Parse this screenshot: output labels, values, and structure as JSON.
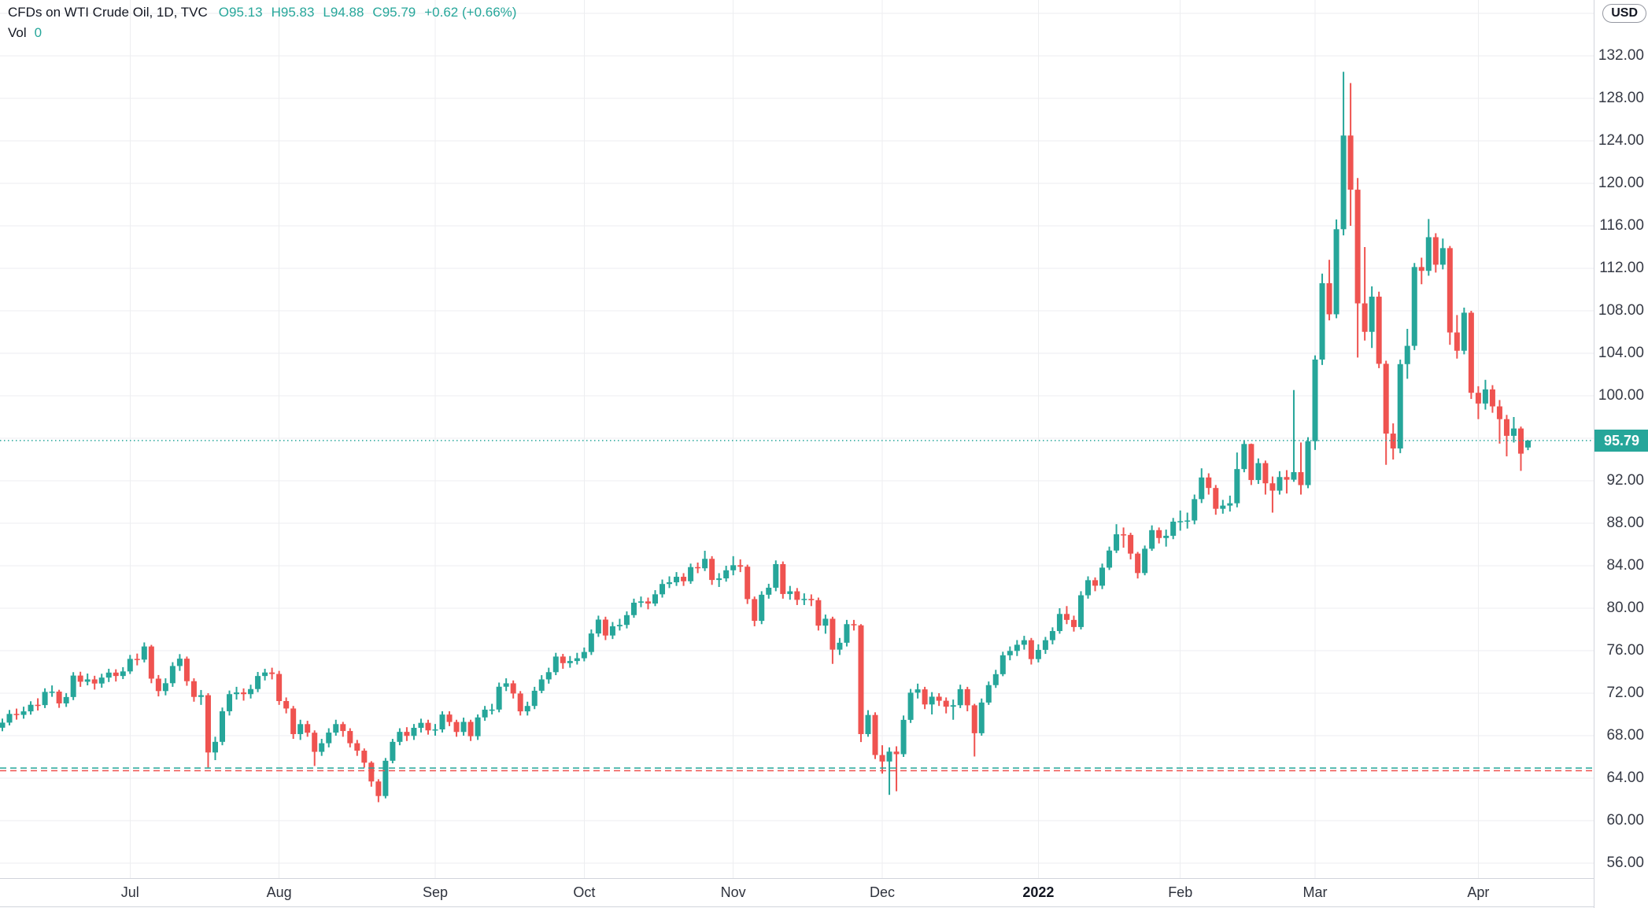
{
  "header": {
    "symbol_title": "CFDs on WTI Crude Oil, 1D, TVC",
    "ohlc": [
      {
        "label": "O",
        "value": "95.13"
      },
      {
        "label": "H",
        "value": "95.83"
      },
      {
        "label": "L",
        "value": "94.88"
      },
      {
        "label": "C",
        "value": "95.79"
      }
    ],
    "change": "+0.62 (+0.66%)",
    "volume_label": "Vol",
    "volume_value": "0"
  },
  "price_axis": {
    "currency_button": "USD",
    "last_price": "95.79",
    "tick_labels": [
      "132.00",
      "128.00",
      "124.00",
      "120.00",
      "116.00",
      "112.00",
      "108.00",
      "104.00",
      "100.00",
      "92.00",
      "88.00",
      "84.00",
      "80.00",
      "76.00",
      "72.00",
      "68.00",
      "64.00",
      "60.00",
      "56.00"
    ]
  },
  "chart_data": {
    "type": "candlestick",
    "title": "CFDs on WTI Crude Oil, 1D, TVC",
    "symbol": "CFDs on WTI Crude Oil",
    "interval": "1D",
    "exchange": "TVC",
    "currency": "USD",
    "last_bar": {
      "open": 95.13,
      "high": 95.83,
      "low": 94.88,
      "close": 95.79,
      "change_text": "+0.62 (+0.66%)"
    },
    "volume_shown": 0,
    "colors": {
      "up": "#26a69a",
      "down": "#ef5350",
      "grid": "#edeef0",
      "axis_border": "#d1d4dc",
      "axis_text": "#363a45",
      "badge_bg": "#26a69a"
    },
    "y_axis": {
      "label_min": 56,
      "label_max": 132,
      "tick_step": 4,
      "gridline_max": 136,
      "unit": "USD"
    },
    "x_axis": [
      {
        "label": "Jul",
        "candle_index": 18,
        "bold": false
      },
      {
        "label": "Aug",
        "candle_index": 39,
        "bold": false
      },
      {
        "label": "Sep",
        "candle_index": 61,
        "bold": false
      },
      {
        "label": "Oct",
        "candle_index": 82,
        "bold": false
      },
      {
        "label": "Nov",
        "candle_index": 103,
        "bold": false
      },
      {
        "label": "Dec",
        "candle_index": 124,
        "bold": false
      },
      {
        "label": "2022",
        "candle_index": 146,
        "bold": true
      },
      {
        "label": "Feb",
        "candle_index": 166,
        "bold": false
      },
      {
        "label": "Mar",
        "candle_index": 185,
        "bold": false
      },
      {
        "label": "Apr",
        "candle_index": 208,
        "bold": false
      }
    ],
    "price_lines": [
      {
        "name": "last-price-line",
        "price": 95.79,
        "color": "#26a69a",
        "style": "dotted"
      },
      {
        "name": "teal-alert-line",
        "price": 64.95,
        "color": "#26a69a",
        "style": "dashed"
      },
      {
        "name": "red-alert-line",
        "price": 64.7,
        "color": "#ef5350",
        "style": "dashed"
      }
    ],
    "candles": [
      [
        68.75,
        69.61,
        68.42,
        69.23
      ],
      [
        69.23,
        70.42,
        68.97,
        70.05
      ],
      [
        70.05,
        70.55,
        69.51,
        69.96
      ],
      [
        69.96,
        70.73,
        69.6,
        70.29
      ],
      [
        70.29,
        71.24,
        69.98,
        70.91
      ],
      [
        70.91,
        71.52,
        70.37,
        70.88
      ],
      [
        70.88,
        72.46,
        70.6,
        72.12
      ],
      [
        72.12,
        72.73,
        71.66,
        72.15
      ],
      [
        72.15,
        72.32,
        70.62,
        71.04
      ],
      [
        71.04,
        72.01,
        70.71,
        71.64
      ],
      [
        71.64,
        73.98,
        71.35,
        73.66
      ],
      [
        73.66,
        74.02,
        72.6,
        73.08
      ],
      [
        73.08,
        73.85,
        72.74,
        73.3
      ],
      [
        73.3,
        73.64,
        72.34,
        72.91
      ],
      [
        72.91,
        73.83,
        72.52,
        73.47
      ],
      [
        73.47,
        74.3,
        73.05,
        73.94
      ],
      [
        73.94,
        74.25,
        73.1,
        73.62
      ],
      [
        73.62,
        74.45,
        73.33,
        74.05
      ],
      [
        74.05,
        75.6,
        73.81,
        75.23
      ],
      [
        75.23,
        75.73,
        74.62,
        75.16
      ],
      [
        75.16,
        76.78,
        74.9,
        76.4
      ],
      [
        76.4,
        76.55,
        72.94,
        73.37
      ],
      [
        73.37,
        73.71,
        71.7,
        72.2
      ],
      [
        72.2,
        73.4,
        71.8,
        72.94
      ],
      [
        72.94,
        74.92,
        72.6,
        74.56
      ],
      [
        74.56,
        75.68,
        74.1,
        75.25
      ],
      [
        75.25,
        75.45,
        72.7,
        73.13
      ],
      [
        73.13,
        73.4,
        71.2,
        71.65
      ],
      [
        71.65,
        72.3,
        70.9,
        71.81
      ],
      [
        71.81,
        72.0,
        65.01,
        66.42
      ],
      [
        66.42,
        67.9,
        65.7,
        67.42
      ],
      [
        67.42,
        70.65,
        67.1,
        70.3
      ],
      [
        70.3,
        72.25,
        69.9,
        71.91
      ],
      [
        71.91,
        72.6,
        71.4,
        72.07
      ],
      [
        72.07,
        72.45,
        71.3,
        71.91
      ],
      [
        71.91,
        72.8,
        71.5,
        72.39
      ],
      [
        72.39,
        74.0,
        72.1,
        73.62
      ],
      [
        73.62,
        74.3,
        73.2,
        73.95
      ],
      [
        73.95,
        74.4,
        73.3,
        73.81
      ],
      [
        73.81,
        74.1,
        70.9,
        71.26
      ],
      [
        71.26,
        71.6,
        70.1,
        70.56
      ],
      [
        70.56,
        70.8,
        67.7,
        68.15
      ],
      [
        68.15,
        69.5,
        67.6,
        69.09
      ],
      [
        69.09,
        69.4,
        67.9,
        68.28
      ],
      [
        68.28,
        68.5,
        65.15,
        66.48
      ],
      [
        66.48,
        67.7,
        66.1,
        67.29
      ],
      [
        67.29,
        68.7,
        66.9,
        68.29
      ],
      [
        68.29,
        69.5,
        68.0,
        69.09
      ],
      [
        69.09,
        69.3,
        67.9,
        68.44
      ],
      [
        68.44,
        68.7,
        66.9,
        67.29
      ],
      [
        67.29,
        67.6,
        66.1,
        66.59
      ],
      [
        66.59,
        66.8,
        65.0,
        65.46
      ],
      [
        65.46,
        65.6,
        63.2,
        63.69
      ],
      [
        63.69,
        63.9,
        61.74,
        62.32
      ],
      [
        62.32,
        65.9,
        62.1,
        65.64
      ],
      [
        65.64,
        67.7,
        65.4,
        67.42
      ],
      [
        67.42,
        68.7,
        67.1,
        68.36
      ],
      [
        68.36,
        68.8,
        67.5,
        67.98
      ],
      [
        67.98,
        69.1,
        67.6,
        68.74
      ],
      [
        68.74,
        69.6,
        68.3,
        69.21
      ],
      [
        69.21,
        69.5,
        68.1,
        68.5
      ],
      [
        68.5,
        69.1,
        68.0,
        68.59
      ],
      [
        68.59,
        70.3,
        68.3,
        69.99
      ],
      [
        69.99,
        70.3,
        68.9,
        69.29
      ],
      [
        69.29,
        69.5,
        67.9,
        68.35
      ],
      [
        68.35,
        69.7,
        68.0,
        69.3
      ],
      [
        69.3,
        69.5,
        67.5,
        67.95
      ],
      [
        67.95,
        70.0,
        67.6,
        69.72
      ],
      [
        69.72,
        70.8,
        69.4,
        70.45
      ],
      [
        70.45,
        71.0,
        70.0,
        70.46
      ],
      [
        70.46,
        73.0,
        70.2,
        72.61
      ],
      [
        72.61,
        73.4,
        72.2,
        72.93
      ],
      [
        72.93,
        73.2,
        71.5,
        71.97
      ],
      [
        71.97,
        72.2,
        69.9,
        70.29
      ],
      [
        70.29,
        71.2,
        69.9,
        70.8
      ],
      [
        70.8,
        72.6,
        70.5,
        72.23
      ],
      [
        72.23,
        73.7,
        72.0,
        73.3
      ],
      [
        73.3,
        74.4,
        72.9,
        73.98
      ],
      [
        73.98,
        75.8,
        73.7,
        75.45
      ],
      [
        75.45,
        75.7,
        74.3,
        74.83
      ],
      [
        74.83,
        75.5,
        74.4,
        75.03
      ],
      [
        75.03,
        75.8,
        74.7,
        75.29
      ],
      [
        75.29,
        76.3,
        75.0,
        75.88
      ],
      [
        75.88,
        78.0,
        75.6,
        77.62
      ],
      [
        77.62,
        79.3,
        77.3,
        78.93
      ],
      [
        78.93,
        79.2,
        77.0,
        77.43
      ],
      [
        77.43,
        78.7,
        77.1,
        78.3
      ],
      [
        78.3,
        79.0,
        77.9,
        78.43
      ],
      [
        78.43,
        79.7,
        78.1,
        79.35
      ],
      [
        79.35,
        80.9,
        79.1,
        80.52
      ],
      [
        80.52,
        81.1,
        80.1,
        80.64
      ],
      [
        80.64,
        81.0,
        79.9,
        80.44
      ],
      [
        80.44,
        81.7,
        80.2,
        81.31
      ],
      [
        81.31,
        82.7,
        81.0,
        82.28
      ],
      [
        82.28,
        83.0,
        81.9,
        82.44
      ],
      [
        82.44,
        83.4,
        82.1,
        82.96
      ],
      [
        82.96,
        83.3,
        82.1,
        82.54
      ],
      [
        82.54,
        84.2,
        82.3,
        83.87
      ],
      [
        83.87,
        84.3,
        83.3,
        83.76
      ],
      [
        83.76,
        85.41,
        83.5,
        84.65
      ],
      [
        84.65,
        84.9,
        82.2,
        82.66
      ],
      [
        82.66,
        83.3,
        82.0,
        82.81
      ],
      [
        82.81,
        84.0,
        82.5,
        83.57
      ],
      [
        83.57,
        84.9,
        83.1,
        84.05
      ],
      [
        84.05,
        84.6,
        83.4,
        83.91
      ],
      [
        83.91,
        84.1,
        80.4,
        80.86
      ],
      [
        80.86,
        81.1,
        78.3,
        78.81
      ],
      [
        78.81,
        81.6,
        78.5,
        81.27
      ],
      [
        81.27,
        82.3,
        80.9,
        81.93
      ],
      [
        81.93,
        84.5,
        81.6,
        84.15
      ],
      [
        84.15,
        84.4,
        80.9,
        81.34
      ],
      [
        81.34,
        82.1,
        80.8,
        81.59
      ],
      [
        81.59,
        81.9,
        80.3,
        80.79
      ],
      [
        80.79,
        81.4,
        80.3,
        80.88
      ],
      [
        80.88,
        81.3,
        80.2,
        80.76
      ],
      [
        80.76,
        81.0,
        77.9,
        78.36
      ],
      [
        78.36,
        79.4,
        77.6,
        79.01
      ],
      [
        79.01,
        79.2,
        74.76,
        76.1
      ],
      [
        76.1,
        77.2,
        75.6,
        76.75
      ],
      [
        76.75,
        78.9,
        76.4,
        78.5
      ],
      [
        78.5,
        78.9,
        77.9,
        78.39
      ],
      [
        78.39,
        78.5,
        67.4,
        68.15
      ],
      [
        68.15,
        70.4,
        67.9,
        69.95
      ],
      [
        69.95,
        70.2,
        65.8,
        66.18
      ],
      [
        66.18,
        67.1,
        64.43,
        65.57
      ],
      [
        65.57,
        66.9,
        62.43,
        66.5
      ],
      [
        66.5,
        67.0,
        62.77,
        66.26
      ],
      [
        66.26,
        69.9,
        66.0,
        69.49
      ],
      [
        69.49,
        72.4,
        69.2,
        72.05
      ],
      [
        72.05,
        72.9,
        71.5,
        72.36
      ],
      [
        72.36,
        72.6,
        70.5,
        70.94
      ],
      [
        70.94,
        72.1,
        70.0,
        71.67
      ],
      [
        71.67,
        72.0,
        70.8,
        71.29
      ],
      [
        71.29,
        71.6,
        70.1,
        70.73
      ],
      [
        70.73,
        71.4,
        69.5,
        70.87
      ],
      [
        70.87,
        72.8,
        70.6,
        72.38
      ],
      [
        72.38,
        72.6,
        70.3,
        70.86
      ],
      [
        70.86,
        71.0,
        66.04,
        68.23
      ],
      [
        68.23,
        71.5,
        68.0,
        71.12
      ],
      [
        71.12,
        73.1,
        70.9,
        72.76
      ],
      [
        72.76,
        74.2,
        72.5,
        73.79
      ],
      [
        73.79,
        75.9,
        73.6,
        75.57
      ],
      [
        75.57,
        76.4,
        75.1,
        75.98
      ],
      [
        75.98,
        77.0,
        75.5,
        76.56
      ],
      [
        76.56,
        77.4,
        76.1,
        76.99
      ],
      [
        76.99,
        77.2,
        74.7,
        75.21
      ],
      [
        75.21,
        76.6,
        74.9,
        76.08
      ],
      [
        76.08,
        77.3,
        75.7,
        76.99
      ],
      [
        76.99,
        78.2,
        76.6,
        77.85
      ],
      [
        77.85,
        80.0,
        77.6,
        79.46
      ],
      [
        79.46,
        80.2,
        78.5,
        78.9
      ],
      [
        78.9,
        79.3,
        77.8,
        78.23
      ],
      [
        78.23,
        81.6,
        78.0,
        81.22
      ],
      [
        81.22,
        83.0,
        80.9,
        82.64
      ],
      [
        82.64,
        82.9,
        81.6,
        82.12
      ],
      [
        82.12,
        84.2,
        81.8,
        83.82
      ],
      [
        83.82,
        85.8,
        83.6,
        85.43
      ],
      [
        85.43,
        87.91,
        85.2,
        86.96
      ],
      [
        86.96,
        87.6,
        85.7,
        86.9
      ],
      [
        86.9,
        87.1,
        84.6,
        85.14
      ],
      [
        85.14,
        85.3,
        82.8,
        83.31
      ],
      [
        83.31,
        85.9,
        83.1,
        85.6
      ],
      [
        85.6,
        87.8,
        85.4,
        87.35
      ],
      [
        87.35,
        87.6,
        86.1,
        86.61
      ],
      [
        86.61,
        87.4,
        85.8,
        86.82
      ],
      [
        86.82,
        88.5,
        86.5,
        88.15
      ],
      [
        88.15,
        89.2,
        87.3,
        88.2
      ],
      [
        88.2,
        89.0,
        87.5,
        88.26
      ],
      [
        88.26,
        90.7,
        87.9,
        90.27
      ],
      [
        90.27,
        93.17,
        89.9,
        92.31
      ],
      [
        92.31,
        92.7,
        90.7,
        91.32
      ],
      [
        91.32,
        91.6,
        88.8,
        89.36
      ],
      [
        89.36,
        90.2,
        88.9,
        89.66
      ],
      [
        89.66,
        90.6,
        89.1,
        89.88
      ],
      [
        89.88,
        94.66,
        89.5,
        93.1
      ],
      [
        93.1,
        95.82,
        92.8,
        95.46
      ],
      [
        95.46,
        95.5,
        91.6,
        92.07
      ],
      [
        92.07,
        94.1,
        91.7,
        93.66
      ],
      [
        93.66,
        93.9,
        90.7,
        91.76
      ],
      [
        91.76,
        92.4,
        89.0,
        91.07
      ],
      [
        91.07,
        92.9,
        90.7,
        92.35
      ],
      [
        92.35,
        93.0,
        90.8,
        92.1
      ],
      [
        92.1,
        100.54,
        91.9,
        92.81
      ],
      [
        92.81,
        95.6,
        90.7,
        91.59
      ],
      [
        91.59,
        96.1,
        91.3,
        95.72
      ],
      [
        95.72,
        103.8,
        94.9,
        103.41
      ],
      [
        103.41,
        111.5,
        102.9,
        110.6
      ],
      [
        110.6,
        112.8,
        107.1,
        107.67
      ],
      [
        107.67,
        116.6,
        107.3,
        115.68
      ],
      [
        115.68,
        130.5,
        115.1,
        124.5
      ],
      [
        124.5,
        129.44,
        116.0,
        119.4
      ],
      [
        119.4,
        120.5,
        103.6,
        108.7
      ],
      [
        108.7,
        114.0,
        105.2,
        106.02
      ],
      [
        106.02,
        110.3,
        104.5,
        109.33
      ],
      [
        109.33,
        109.8,
        102.6,
        103.01
      ],
      [
        103.01,
        103.3,
        93.5,
        96.44
      ],
      [
        96.44,
        97.4,
        94.0,
        95.04
      ],
      [
        95.04,
        103.4,
        94.6,
        102.98
      ],
      [
        102.98,
        106.3,
        101.6,
        104.7
      ],
      [
        104.7,
        112.5,
        104.3,
        112.12
      ],
      [
        112.12,
        113.0,
        110.5,
        111.76
      ],
      [
        111.76,
        116.64,
        111.3,
        114.93
      ],
      [
        114.93,
        115.3,
        111.6,
        112.34
      ],
      [
        112.34,
        114.8,
        111.9,
        113.9
      ],
      [
        113.9,
        114.1,
        104.8,
        105.96
      ],
      [
        105.96,
        107.6,
        103.5,
        104.24
      ],
      [
        104.24,
        108.3,
        103.9,
        107.82
      ],
      [
        107.82,
        108.0,
        99.7,
        100.28
      ],
      [
        100.28,
        100.9,
        97.8,
        99.27
      ],
      [
        99.27,
        101.5,
        98.7,
        100.6
      ],
      [
        100.6,
        101.0,
        98.4,
        99.0
      ],
      [
        99.0,
        99.6,
        95.5,
        97.8
      ],
      [
        97.8,
        98.2,
        94.3,
        96.23
      ],
      [
        96.23,
        98.0,
        95.6,
        96.92
      ],
      [
        96.92,
        97.1,
        92.93,
        94.55
      ],
      [
        95.13,
        95.83,
        94.88,
        95.79
      ]
    ]
  }
}
